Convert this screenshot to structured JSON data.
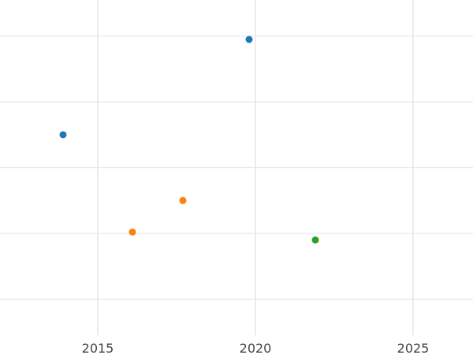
{
  "chart_data": {
    "type": "scatter",
    "title": "",
    "xlabel": "",
    "ylabel": "",
    "xlim": [
      2011.9,
      2026.9
    ],
    "ylim": [
      -0.55,
      4.55
    ],
    "xticks": [
      2015,
      2020,
      2025
    ],
    "xtick_labels": [
      "2015",
      "2020",
      "2025"
    ],
    "yticks": [
      0,
      1,
      2,
      3,
      4
    ],
    "ytick_labels": [
      "",
      "",
      "",
      "",
      ""
    ],
    "grid": true,
    "legend": "none",
    "series": [
      {
        "color": "#1f77b4",
        "points": [
          {
            "x": 2013.9,
            "y": 2.5
          },
          {
            "x": 2019.8,
            "y": 3.95
          }
        ]
      },
      {
        "color": "#ff7f0e",
        "points": [
          {
            "x": 2016.1,
            "y": 1.02
          },
          {
            "x": 2017.7,
            "y": 1.5
          }
        ]
      },
      {
        "color": "#2ca02c",
        "points": [
          {
            "x": 2021.9,
            "y": 0.9
          }
        ]
      }
    ]
  }
}
